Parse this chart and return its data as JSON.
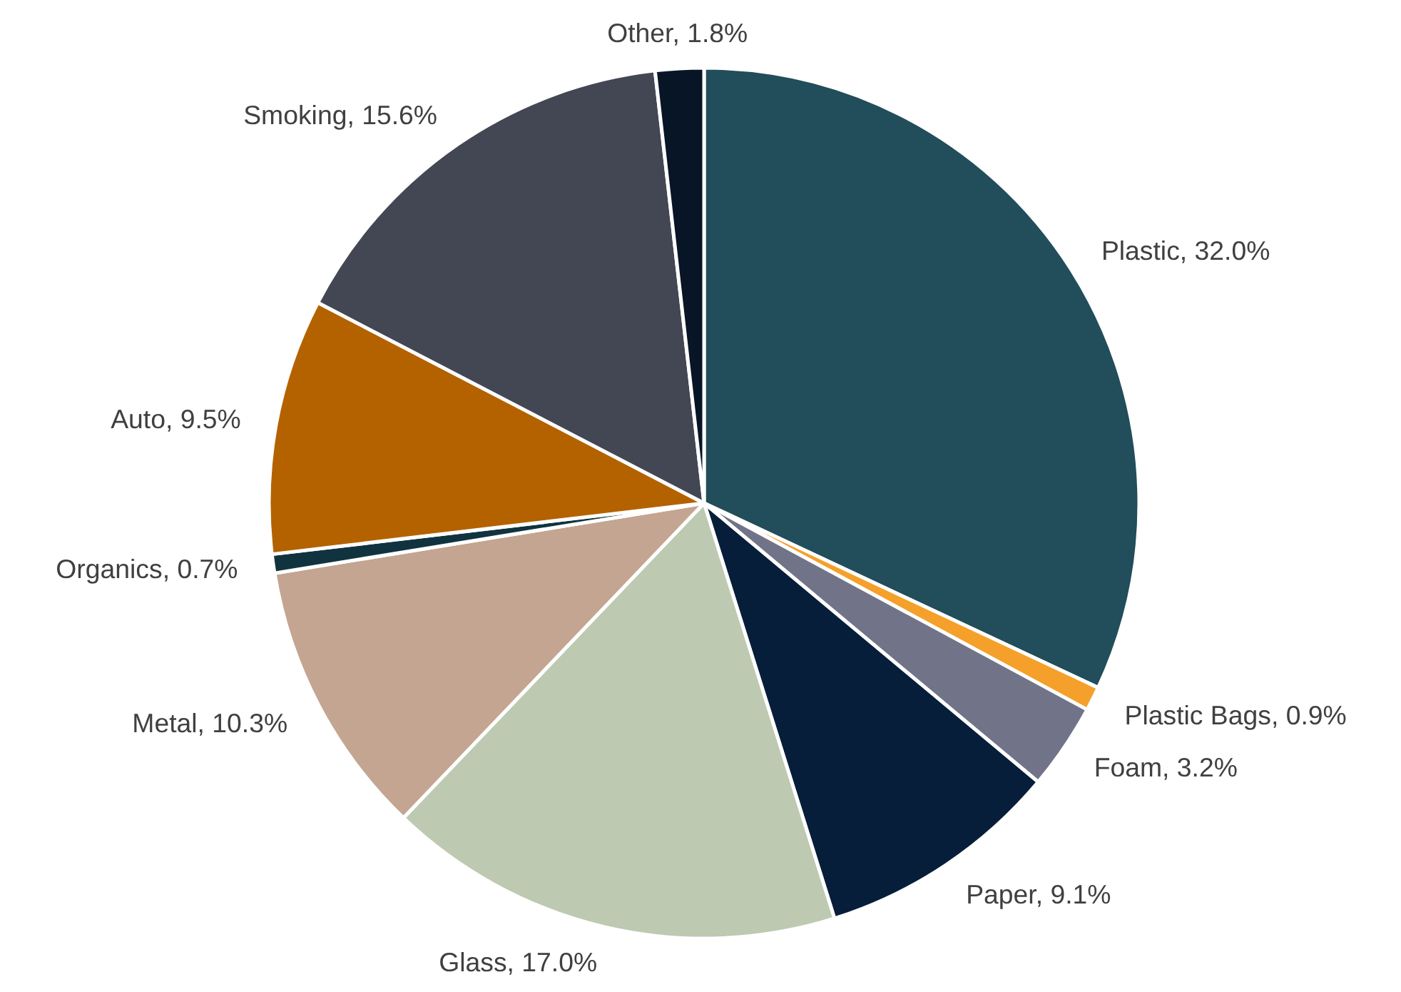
{
  "chart_data": {
    "type": "pie",
    "categories": [
      "Plastic",
      "Plastic Bags",
      "Foam",
      "Paper",
      "Glass",
      "Metal",
      "Organics",
      "Auto",
      "Smoking",
      "Other"
    ],
    "values": [
      32.0,
      0.9,
      3.2,
      9.1,
      17.0,
      10.3,
      0.7,
      9.5,
      15.6,
      1.8
    ],
    "value_labels": [
      "32.0%",
      "0.9%",
      "3.2%",
      "9.1%",
      "17.0%",
      "10.3%",
      "0.7%",
      "9.5%",
      "15.6%",
      "1.8%"
    ],
    "colors": [
      "#224d5a",
      "#f5a02a",
      "#717489",
      "#071e3a",
      "#bdc9b1",
      "#c3a591",
      "#113340",
      "#b46200",
      "#434653",
      "#071527"
    ]
  }
}
